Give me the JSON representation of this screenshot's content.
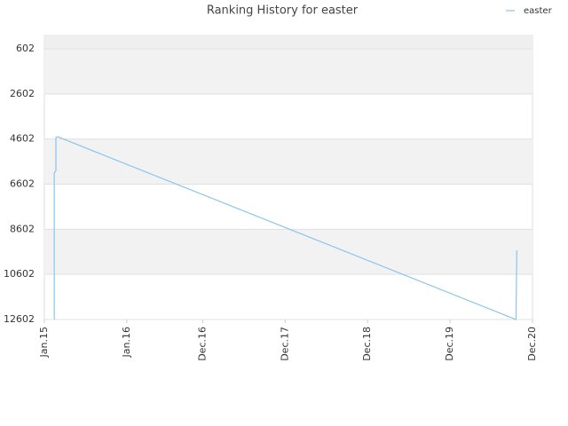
{
  "chart_data": {
    "type": "line",
    "title": "Ranking History for easter",
    "x": [
      2015.12,
      2015.12,
      2015.14,
      2015.14,
      2015.16,
      2020.72,
      2020.73
    ],
    "series": [
      {
        "name": "easter",
        "color": "#89c4ee",
        "values": [
          12602,
          6110,
          6000,
          4536,
          4500,
          12602,
          9533
        ]
      }
    ],
    "xlim": [
      2015.0,
      2020.92
    ],
    "xticks": [
      {
        "value": 2015.0,
        "label": "Jan.15"
      },
      {
        "value": 2016.0,
        "label": "Jan.16"
      },
      {
        "value": 2016.92,
        "label": "Dec.16"
      },
      {
        "value": 2017.92,
        "label": "Dec.17"
      },
      {
        "value": 2018.92,
        "label": "Dec.18"
      },
      {
        "value": 2019.92,
        "label": "Dec.19"
      },
      {
        "value": 2020.92,
        "label": "Dec.20"
      }
    ],
    "ylim": [
      12602,
      12
    ],
    "yticks": [
      602,
      2602,
      4602,
      6602,
      8602,
      10602,
      12602
    ],
    "grid": true,
    "legend": "top-right"
  }
}
